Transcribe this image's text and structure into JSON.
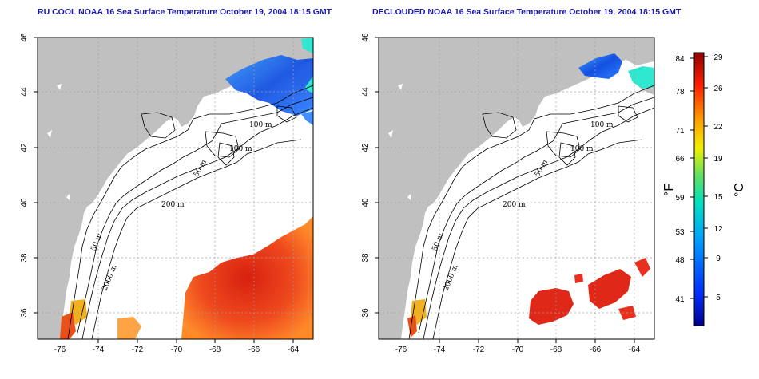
{
  "panels": [
    {
      "title": "RU COOL NOAA 16 Sea Surface Temperature October 19, 2004 18:15 GMT",
      "contour_labels": [
        "100 m",
        "100 m",
        "50 m",
        "200 m",
        "50 m",
        "2000 m"
      ]
    },
    {
      "title": "DECLOUDED NOAA 16 Sea Surface Temperature October 19, 2004 18:15 GMT",
      "contour_labels": [
        "100 m",
        "100 m",
        "50 m",
        "200 m",
        "50 m",
        "2000 m"
      ]
    }
  ],
  "axes": {
    "lon_ticks": [
      "-76",
      "-74",
      "-72",
      "-70",
      "-68",
      "-66",
      "-64"
    ],
    "lat_ticks": [
      "36",
      "38",
      "40",
      "42",
      "44",
      "46"
    ]
  },
  "colorbar": {
    "fahrenheit_ticks": [
      "84",
      "78",
      "71",
      "66",
      "59",
      "53",
      "48",
      "41"
    ],
    "celsius_ticks": [
      "29",
      "26",
      "22",
      "19",
      "15",
      "12",
      "9",
      "5"
    ],
    "fahrenheit_label": "°F",
    "celsius_label": "°C"
  },
  "colors": {
    "land": "#c0c0c0",
    "ocean_no_data": "#ffffff",
    "title": "#1a1aa8",
    "warm_water": "#e8301a",
    "cold_water": "#1e58e0"
  }
}
